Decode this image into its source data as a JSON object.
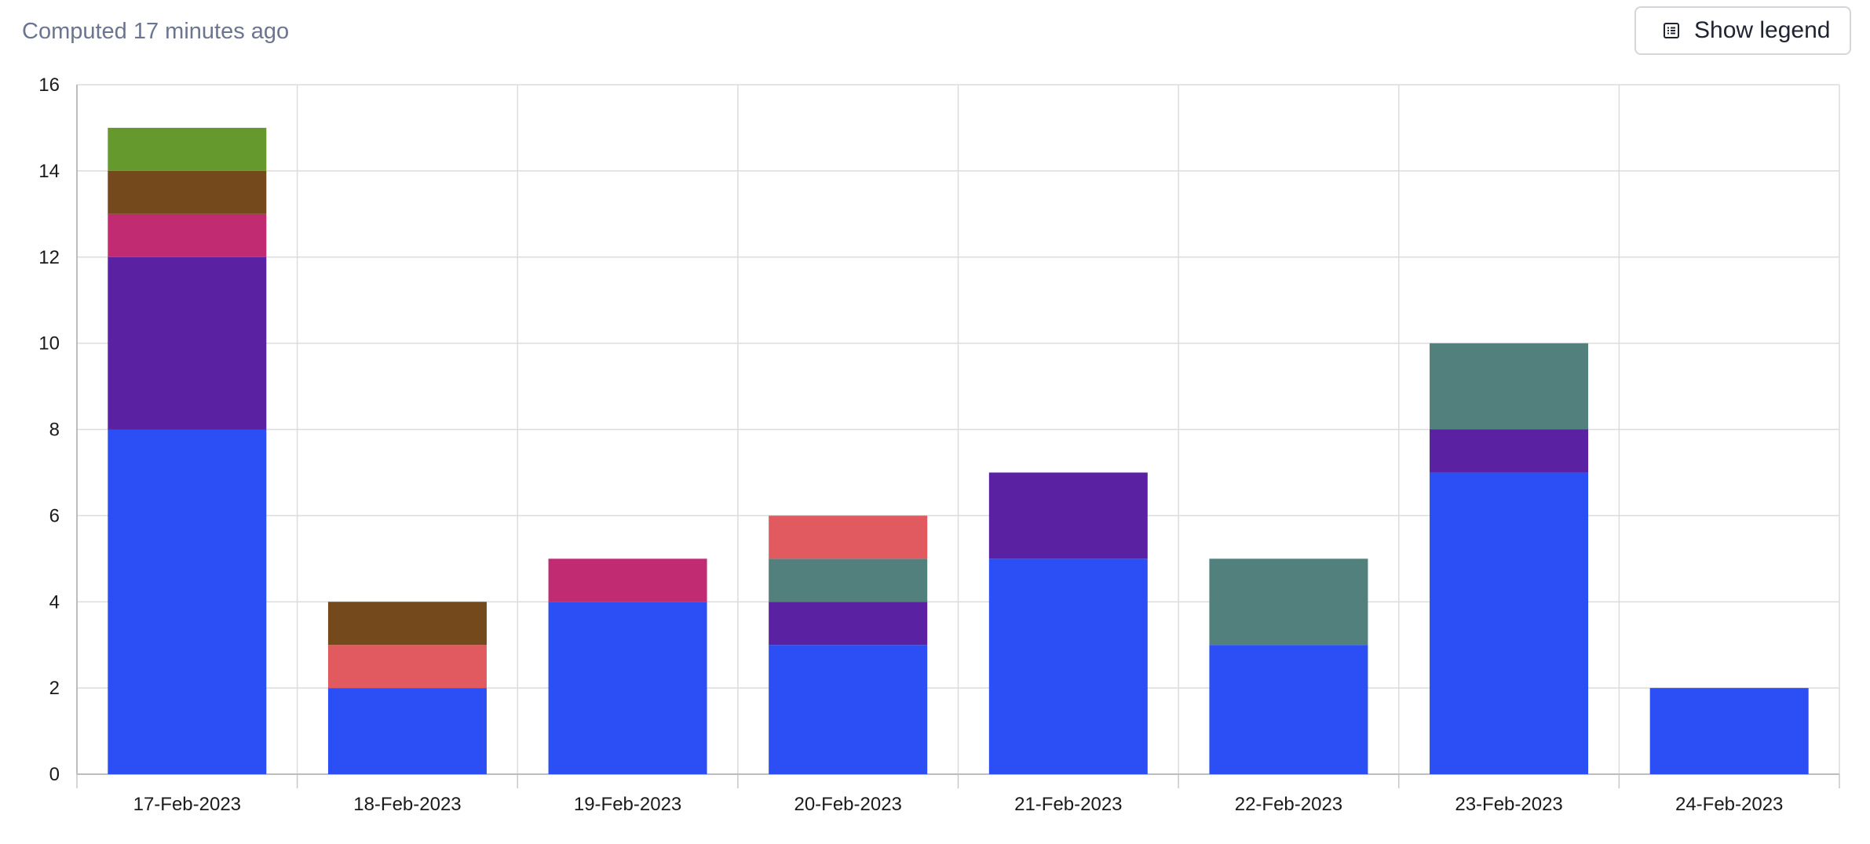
{
  "header": {
    "computed_text": "Computed 17 minutes ago",
    "legend_button_label": "Show legend",
    "legend_icon": "list-icon"
  },
  "chart_data": {
    "type": "bar",
    "stacked": true,
    "categories": [
      "17-Feb-2023",
      "18-Feb-2023",
      "19-Feb-2023",
      "20-Feb-2023",
      "21-Feb-2023",
      "22-Feb-2023",
      "23-Feb-2023",
      "24-Feb-2023"
    ],
    "series": [
      {
        "color": "#2b4ef5",
        "values": [
          8,
          2,
          4,
          3,
          5,
          3,
          7,
          2
        ]
      },
      {
        "color": "#5a22a3",
        "values": [
          4,
          0,
          0,
          1,
          2,
          0,
          1,
          0
        ]
      },
      {
        "color": "#52807c",
        "values": [
          0,
          0,
          0,
          1,
          0,
          2,
          2,
          0
        ]
      },
      {
        "color": "#e05a5f",
        "values": [
          0,
          1,
          0,
          1,
          0,
          0,
          0,
          0
        ]
      },
      {
        "color": "#c02b72",
        "values": [
          1,
          0,
          1,
          0,
          0,
          0,
          0,
          0
        ]
      },
      {
        "color": "#744a1d",
        "values": [
          1,
          1,
          0,
          0,
          0,
          0,
          0,
          0
        ]
      },
      {
        "color": "#65992e",
        "values": [
          1,
          0,
          0,
          0,
          0,
          0,
          0,
          0
        ]
      }
    ],
    "ylim": [
      0,
      16
    ],
    "yticks": [
      "0",
      "2",
      "4",
      "6",
      "8",
      "10",
      "12",
      "14",
      "16"
    ],
    "grid": true,
    "legend": "hidden"
  }
}
